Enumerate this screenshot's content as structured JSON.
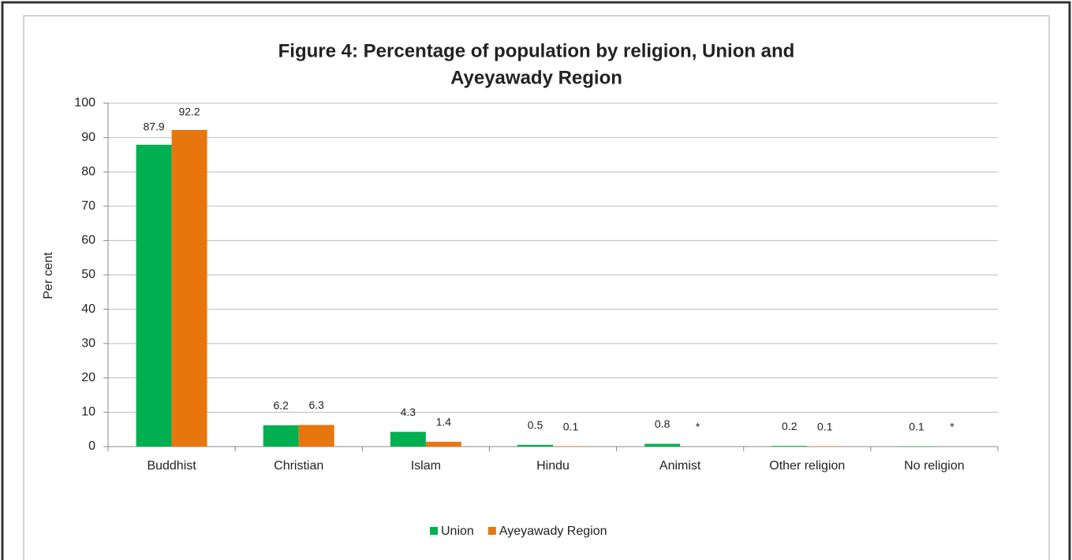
{
  "chart_data": {
    "type": "bar",
    "title": [
      "Figure 4: Percentage of population by religion, Union and",
      "Ayeyawady  Region"
    ],
    "y_label": "Per cent",
    "categories": [
      "Buddhist",
      "Christian",
      "Islam",
      "Hindu",
      "Animist",
      "Other religion",
      "No religion"
    ],
    "series": [
      {
        "name": "Union",
        "color": "#00b050",
        "values": [
          87.9,
          6.2,
          4.3,
          0.5,
          0.8,
          0.2,
          0.1
        ]
      },
      {
        "name": "Ayeyawady Region",
        "color": "#e8760f",
        "values": [
          92.2,
          6.3,
          1.4,
          0.1,
          null,
          0.1,
          null
        ],
        "value_labels": [
          "92.2",
          "6.3",
          "1.4",
          "0.1",
          "*",
          "0.1",
          "*"
        ]
      }
    ],
    "ylim": [
      0,
      100
    ],
    "yticks": [
      0,
      10,
      20,
      30,
      40,
      50,
      60,
      70,
      80,
      90,
      100
    ],
    "grid": true,
    "legend": "bottom"
  }
}
